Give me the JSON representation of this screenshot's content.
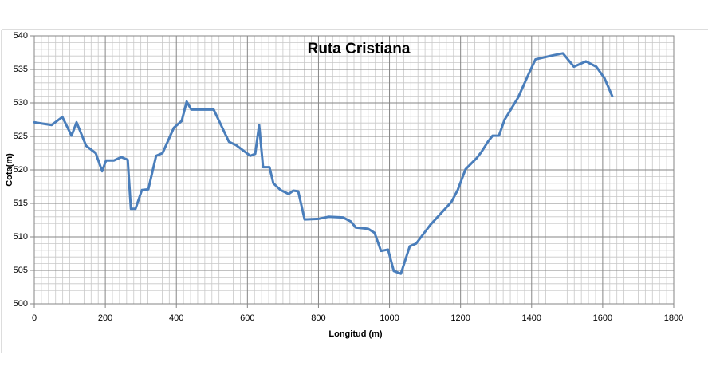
{
  "chart_data": {
    "type": "line",
    "title": "Ruta Cristiana",
    "x_label": "Longitud (m)",
    "y_label": "Cota(m)",
    "series": [
      {
        "name": "Cota",
        "color": "#4a7ebb",
        "x": [
          0,
          49,
          79,
          105,
          119,
          146,
          173,
          191,
          202,
          224,
          245,
          263,
          272,
          285,
          303,
          321,
          343,
          361,
          393,
          415,
          429,
          442,
          505,
          548,
          568,
          608,
          622,
          633,
          644,
          662,
          673,
          693,
          716,
          729,
          743,
          761,
          801,
          828,
          869,
          891,
          905,
          940,
          958,
          976,
          996,
          1012,
          1032,
          1057,
          1075,
          1115,
          1174,
          1192,
          1214,
          1246,
          1259,
          1277,
          1290,
          1308,
          1324,
          1362,
          1394,
          1411,
          1452,
          1488,
          1519,
          1553,
          1582,
          1605,
          1627
        ],
        "values": [
          527.1,
          526.7,
          527.9,
          525.1,
          527.1,
          523.6,
          522.5,
          519.8,
          521.4,
          521.4,
          521.9,
          521.5,
          514.2,
          514.2,
          517.0,
          517.1,
          522.1,
          522.5,
          526.3,
          527.3,
          530.2,
          529.0,
          529.0,
          524.2,
          523.7,
          522.1,
          522.4,
          526.7,
          520.4,
          520.4,
          518.0,
          517.0,
          516.4,
          516.9,
          516.8,
          512.6,
          512.7,
          513.0,
          512.9,
          512.3,
          511.4,
          511.2,
          510.6,
          507.9,
          508.1,
          504.9,
          504.5,
          508.6,
          509.0,
          511.8,
          515.2,
          517.0,
          520.1,
          521.8,
          522.7,
          524.2,
          525.1,
          525.1,
          527.5,
          530.8,
          534.6,
          536.5,
          537.0,
          537.4,
          535.4,
          536.2,
          535.4,
          533.7,
          531.0
        ]
      }
    ],
    "xlim": [
      0,
      1800
    ],
    "xticks": [
      0,
      200,
      400,
      600,
      800,
      1000,
      1200,
      1400,
      1600,
      1800
    ],
    "ylim": [
      500,
      540
    ],
    "yticks": [
      500,
      505,
      510,
      515,
      520,
      525,
      530,
      535,
      540
    ],
    "grid": true
  }
}
